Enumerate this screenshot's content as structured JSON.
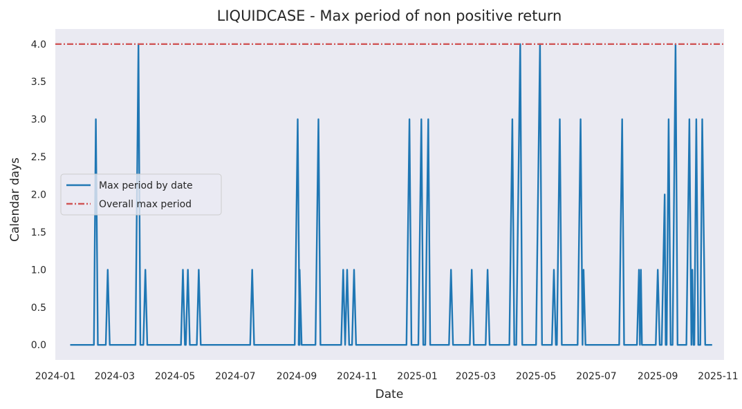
{
  "chart_data": {
    "type": "line",
    "title": "LIQUIDCASE - Max period of non positive return",
    "xlabel": "Date",
    "ylabel": "Calendar days",
    "xlim": [
      "2024-01-01",
      "2025-11-07"
    ],
    "ylim": [
      -0.2,
      4.2
    ],
    "grid": false,
    "legend_position": "center-left",
    "x_ticks": [
      "2024-01",
      "2024-03",
      "2024-05",
      "2024-07",
      "2024-09",
      "2024-11",
      "2025-01",
      "2025-03",
      "2025-05",
      "2025-07",
      "2025-09",
      "2025-11"
    ],
    "y_ticks": [
      "0.0",
      "0.5",
      "1.0",
      "1.5",
      "2.0",
      "2.5",
      "3.0",
      "3.5",
      "4.0"
    ],
    "background": "#eaeaf2",
    "series": [
      {
        "name": "Max period by date",
        "color": "#1f77b4",
        "style": "solid",
        "points": [
          [
            "2024-01-16",
            0
          ],
          [
            "2024-02-09",
            0
          ],
          [
            "2024-02-11",
            3
          ],
          [
            "2024-02-13",
            0
          ],
          [
            "2024-02-21",
            0
          ],
          [
            "2024-02-23",
            1
          ],
          [
            "2024-02-25",
            0
          ],
          [
            "2024-03-22",
            0
          ],
          [
            "2024-03-25",
            4
          ],
          [
            "2024-03-27",
            0
          ],
          [
            "2024-03-30",
            0
          ],
          [
            "2024-04-01",
            1
          ],
          [
            "2024-04-03",
            0
          ],
          [
            "2024-05-07",
            0
          ],
          [
            "2024-05-09",
            1
          ],
          [
            "2024-05-11",
            0
          ],
          [
            "2024-05-12",
            0
          ],
          [
            "2024-05-14",
            1
          ],
          [
            "2024-05-16",
            0
          ],
          [
            "2024-05-23",
            0
          ],
          [
            "2024-05-25",
            1
          ],
          [
            "2024-05-27",
            0
          ],
          [
            "2024-07-16",
            0
          ],
          [
            "2024-07-18",
            1
          ],
          [
            "2024-07-20",
            0
          ],
          [
            "2024-08-30",
            0
          ],
          [
            "2024-09-02",
            3
          ],
          [
            "2024-09-04",
            0
          ],
          [
            "2024-09-03",
            0
          ],
          [
            "2024-09-04",
            1
          ],
          [
            "2024-09-06",
            0
          ],
          [
            "2024-09-20",
            0
          ],
          [
            "2024-09-23",
            3
          ],
          [
            "2024-09-25",
            0
          ],
          [
            "2024-10-16",
            0
          ],
          [
            "2024-10-18",
            1
          ],
          [
            "2024-10-20",
            0
          ],
          [
            "2024-10-22",
            1
          ],
          [
            "2024-10-24",
            0
          ],
          [
            "2024-10-27",
            0
          ],
          [
            "2024-10-29",
            1
          ],
          [
            "2024-10-31",
            0
          ],
          [
            "2024-12-21",
            0
          ],
          [
            "2024-12-24",
            3
          ],
          [
            "2024-12-26",
            0
          ],
          [
            "2025-01-02",
            0
          ],
          [
            "2025-01-05",
            3
          ],
          [
            "2025-01-07",
            0
          ],
          [
            "2025-01-09",
            0
          ],
          [
            "2025-01-12",
            3
          ],
          [
            "2025-01-14",
            0
          ],
          [
            "2025-02-02",
            0
          ],
          [
            "2025-02-04",
            1
          ],
          [
            "2025-02-06",
            0
          ],
          [
            "2025-02-23",
            0
          ],
          [
            "2025-02-25",
            1
          ],
          [
            "2025-02-27",
            0
          ],
          [
            "2025-03-11",
            0
          ],
          [
            "2025-03-13",
            1
          ],
          [
            "2025-03-15",
            0
          ],
          [
            "2025-04-04",
            0
          ],
          [
            "2025-04-07",
            3
          ],
          [
            "2025-04-09",
            0
          ],
          [
            "2025-04-11",
            0
          ],
          [
            "2025-04-15",
            4
          ],
          [
            "2025-04-17",
            0
          ],
          [
            "2025-05-01",
            0
          ],
          [
            "2025-05-05",
            4
          ],
          [
            "2025-05-07",
            0
          ],
          [
            "2025-05-17",
            0
          ],
          [
            "2025-05-19",
            1
          ],
          [
            "2025-05-21",
            0
          ],
          [
            "2025-05-22",
            0
          ],
          [
            "2025-05-25",
            3
          ],
          [
            "2025-05-27",
            0
          ],
          [
            "2025-06-12",
            0
          ],
          [
            "2025-06-15",
            3
          ],
          [
            "2025-06-17",
            0
          ],
          [
            "2025-06-18",
            1
          ],
          [
            "2025-06-20",
            0
          ],
          [
            "2025-07-24",
            0
          ],
          [
            "2025-07-27",
            3
          ],
          [
            "2025-07-29",
            0
          ],
          [
            "2025-08-11",
            0
          ],
          [
            "2025-08-13",
            1
          ],
          [
            "2025-08-14",
            0
          ],
          [
            "2025-08-15",
            1
          ],
          [
            "2025-08-16",
            0
          ],
          [
            "2025-08-30",
            0
          ],
          [
            "2025-09-01",
            1
          ],
          [
            "2025-09-03",
            0
          ],
          [
            "2025-09-05",
            0
          ],
          [
            "2025-09-08",
            2
          ],
          [
            "2025-09-09",
            0
          ],
          [
            "2025-09-10",
            0
          ],
          [
            "2025-09-12",
            3
          ],
          [
            "2025-09-14",
            0
          ],
          [
            "2025-09-16",
            0
          ],
          [
            "2025-09-19",
            4
          ],
          [
            "2025-09-21",
            0
          ],
          [
            "2025-09-30",
            0
          ],
          [
            "2025-10-03",
            3
          ],
          [
            "2025-10-05",
            0
          ],
          [
            "2025-10-06",
            1
          ],
          [
            "2025-10-07",
            0
          ],
          [
            "2025-10-08",
            0
          ],
          [
            "2025-10-10",
            3
          ],
          [
            "2025-10-12",
            0
          ],
          [
            "2025-10-14",
            0
          ],
          [
            "2025-10-16",
            3
          ],
          [
            "2025-10-18",
            1
          ],
          [
            "2025-10-19",
            0
          ],
          [
            "2025-10-26",
            0
          ]
        ]
      },
      {
        "name": "Overall max period",
        "color": "#d05555",
        "style": "dashdot",
        "y": 4.0
      }
    ]
  }
}
